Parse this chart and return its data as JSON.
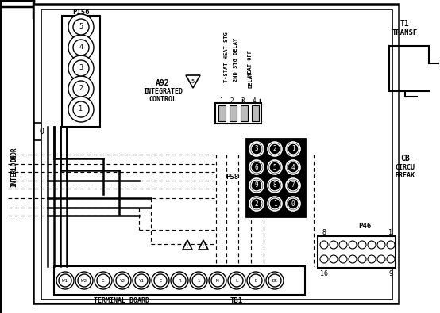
{
  "bg_color": "#ffffff",
  "line_color": "#000000",
  "p156_terminals": [
    "5",
    "4",
    "3",
    "2",
    "1"
  ],
  "p58_terminals": [
    [
      "3",
      "2",
      "1"
    ],
    [
      "6",
      "5",
      "4"
    ],
    [
      "9",
      "8",
      "7"
    ],
    [
      "2",
      "1",
      "0"
    ]
  ],
  "tb1_terminals": [
    "W1",
    "W2",
    "G",
    "Y2",
    "Y1",
    "C",
    "R",
    "1",
    "M",
    "L",
    "D",
    "DS"
  ],
  "p46_cols": 8
}
